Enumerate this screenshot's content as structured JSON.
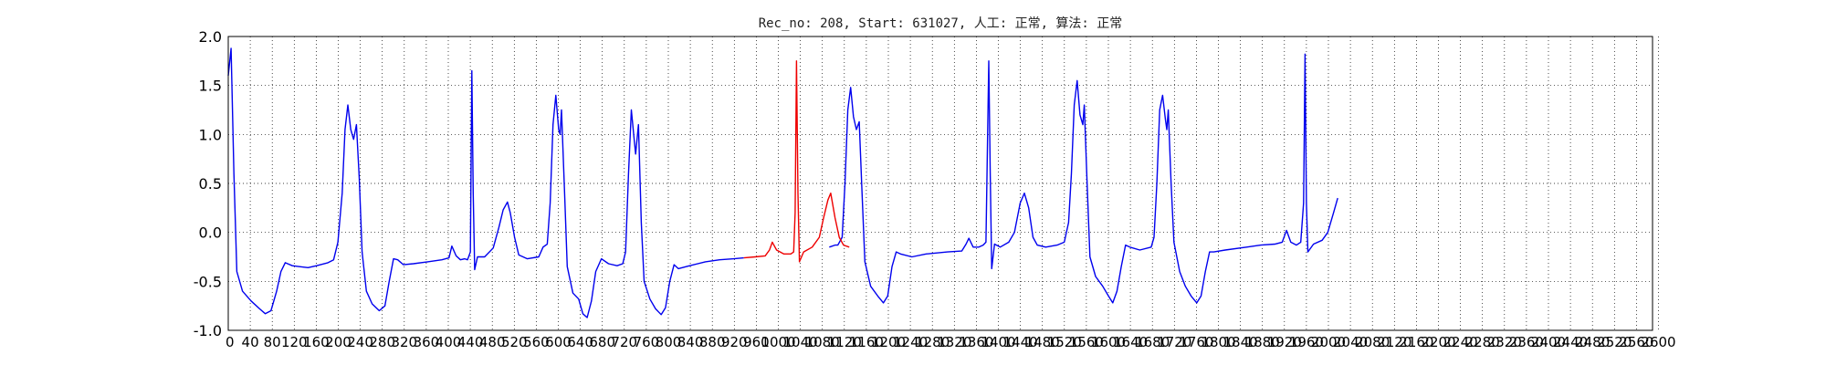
{
  "chart_data": {
    "type": "line",
    "title": "Rec_no: 208, Start: 631027, 人工: 正常, 算法: 正常",
    "xlabel": "",
    "ylabel": "",
    "xlim": [
      0,
      1000
    ],
    "ylim": [
      -1.0,
      2.0
    ],
    "yticks": [
      "-1.0",
      "-0.5",
      "0.0",
      "0.5",
      "1.0",
      "1.5",
      "2.0"
    ],
    "xticks": [
      "0",
      "40",
      "80",
      "120",
      "160",
      "200",
      "240",
      "280",
      "320",
      "360",
      "400",
      "440",
      "480",
      "520",
      "560",
      "600",
      "640",
      "680",
      "720",
      "760",
      "800",
      "840",
      "880",
      "920",
      "960",
      "1000",
      "1040",
      "1080",
      "1120",
      "1160",
      "1200",
      "1240",
      "1280",
      "1320",
      "1360",
      "1400",
      "1440",
      "1480",
      "1520",
      "1560",
      "1600",
      "1640",
      "1680",
      "1720",
      "1760",
      "1800",
      "1840",
      "1880",
      "1920",
      "1960",
      "2000",
      "2040",
      "2080",
      "2120",
      "2160",
      "2200",
      "2240",
      "2280",
      "2320",
      "2360",
      "2400",
      "2440",
      "2480",
      "2520",
      "2560",
      "2600"
    ],
    "grid": true,
    "series": [
      {
        "color": "#0000ee",
        "segments": [
          [
            [
              0,
              1.6
            ],
            [
              2,
              1.88
            ],
            [
              4,
              0.6
            ],
            [
              6,
              -0.4
            ],
            [
              10,
              -0.6
            ],
            [
              16,
              -0.7
            ],
            [
              22,
              -0.78
            ],
            [
              26,
              -0.83
            ],
            [
              30,
              -0.8
            ],
            [
              34,
              -0.6
            ],
            [
              37,
              -0.4
            ],
            [
              40,
              -0.31
            ],
            [
              45,
              -0.34
            ],
            [
              50,
              -0.35
            ],
            [
              56,
              -0.36
            ],
            [
              62,
              -0.34
            ],
            [
              70,
              -0.31
            ],
            [
              74,
              -0.28
            ],
            [
              77,
              -0.1
            ],
            [
              80,
              0.4
            ],
            [
              82,
              1.05
            ],
            [
              84,
              1.3
            ],
            [
              86,
              1.05
            ],
            [
              88,
              0.95
            ],
            [
              90,
              1.1
            ],
            [
              92,
              0.55
            ],
            [
              94,
              -0.2
            ],
            [
              97,
              -0.6
            ],
            [
              101,
              -0.73
            ],
            [
              106,
              -0.8
            ],
            [
              110,
              -0.75
            ],
            [
              113,
              -0.5
            ],
            [
              116,
              -0.27
            ],
            [
              119,
              -0.28
            ],
            [
              123,
              -0.33
            ],
            [
              130,
              -0.32
            ],
            [
              140,
              -0.3
            ],
            [
              150,
              -0.28
            ],
            [
              155,
              -0.26
            ],
            [
              157,
              -0.14
            ],
            [
              160,
              -0.24
            ],
            [
              163,
              -0.28
            ],
            [
              166,
              -0.27
            ],
            [
              168,
              -0.28
            ],
            [
              170,
              -0.2
            ],
            [
              171,
              1.65
            ],
            [
              172,
              0.4
            ],
            [
              173,
              -0.38
            ],
            [
              175,
              -0.25
            ],
            [
              180,
              -0.25
            ],
            [
              186,
              -0.16
            ],
            [
              190,
              0.05
            ],
            [
              193,
              0.23
            ],
            [
              196,
              0.31
            ],
            [
              198,
              0.2
            ],
            [
              201,
              -0.05
            ],
            [
              204,
              -0.23
            ],
            [
              210,
              -0.27
            ],
            [
              218,
              -0.25
            ],
            [
              221,
              -0.15
            ],
            [
              224,
              -0.12
            ],
            [
              226,
              0.3
            ],
            [
              228,
              1.1
            ],
            [
              230,
              1.4
            ],
            [
              232,
              1.05
            ],
            [
              233,
              1.0
            ],
            [
              234,
              1.25
            ],
            [
              236,
              0.45
            ],
            [
              238,
              -0.35
            ],
            [
              242,
              -0.62
            ],
            [
              246,
              -0.68
            ],
            [
              249,
              -0.83
            ],
            [
              252,
              -0.87
            ],
            [
              255,
              -0.7
            ],
            [
              258,
              -0.4
            ],
            [
              262,
              -0.27
            ],
            [
              267,
              -0.32
            ],
            [
              273,
              -0.34
            ],
            [
              277,
              -0.32
            ],
            [
              279,
              -0.2
            ],
            [
              281,
              0.6
            ],
            [
              283,
              1.25
            ],
            [
              285,
              0.95
            ],
            [
              286,
              0.8
            ],
            [
              288,
              1.1
            ],
            [
              290,
              0.1
            ],
            [
              292,
              -0.5
            ],
            [
              296,
              -0.68
            ],
            [
              300,
              -0.78
            ],
            [
              304,
              -0.84
            ],
            [
              307,
              -0.77
            ],
            [
              310,
              -0.5
            ],
            [
              313,
              -0.33
            ],
            [
              316,
              -0.37
            ],
            [
              324,
              -0.34
            ],
            [
              335,
              -0.3
            ],
            [
              345,
              -0.28
            ],
            [
              355,
              -0.27
            ],
            [
              362,
              -0.26
            ]
          ],
          [
            [
              422,
              -0.15
            ],
            [
              426,
              -0.13
            ],
            [
              428,
              -0.13
            ],
            [
              431,
              -0.05
            ],
            [
              433,
              0.5
            ],
            [
              435,
              1.25
            ],
            [
              437,
              1.48
            ],
            [
              439,
              1.18
            ],
            [
              441,
              1.05
            ],
            [
              443,
              1.13
            ],
            [
              445,
              0.4
            ],
            [
              447,
              -0.3
            ],
            [
              451,
              -0.55
            ],
            [
              456,
              -0.65
            ],
            [
              460,
              -0.72
            ],
            [
              463,
              -0.65
            ],
            [
              466,
              -0.35
            ],
            [
              469,
              -0.2
            ],
            [
              472,
              -0.22
            ],
            [
              480,
              -0.25
            ],
            [
              490,
              -0.22
            ],
            [
              505,
              -0.2
            ],
            [
              515,
              -0.19
            ],
            [
              518,
              -0.12
            ],
            [
              520,
              -0.06
            ],
            [
              523,
              -0.15
            ],
            [
              527,
              -0.15
            ],
            [
              530,
              -0.13
            ],
            [
              532,
              -0.1
            ],
            [
              534,
              1.75
            ],
            [
              535,
              0.6
            ],
            [
              536,
              -0.37
            ],
            [
              538,
              -0.12
            ],
            [
              542,
              -0.15
            ],
            [
              548,
              -0.1
            ],
            [
              552,
              0.0
            ],
            [
              556,
              0.3
            ],
            [
              559,
              0.4
            ],
            [
              562,
              0.25
            ],
            [
              565,
              -0.05
            ],
            [
              568,
              -0.13
            ],
            [
              574,
              -0.15
            ],
            [
              582,
              -0.13
            ],
            [
              587,
              -0.1
            ],
            [
              590,
              0.1
            ],
            [
              592,
              0.6
            ],
            [
              594,
              1.3
            ],
            [
              596,
              1.55
            ],
            [
              598,
              1.2
            ],
            [
              600,
              1.1
            ],
            [
              601,
              1.3
            ],
            [
              603,
              0.5
            ],
            [
              605,
              -0.25
            ],
            [
              609,
              -0.45
            ],
            [
              614,
              -0.55
            ],
            [
              618,
              -0.65
            ],
            [
              621,
              -0.72
            ],
            [
              624,
              -0.6
            ],
            [
              627,
              -0.35
            ],
            [
              630,
              -0.13
            ],
            [
              633,
              -0.15
            ],
            [
              640,
              -0.18
            ],
            [
              648,
              -0.15
            ],
            [
              650,
              -0.05
            ],
            [
              652,
              0.5
            ],
            [
              654,
              1.25
            ],
            [
              656,
              1.4
            ],
            [
              658,
              1.15
            ],
            [
              659,
              1.05
            ],
            [
              660,
              1.25
            ],
            [
              662,
              0.5
            ],
            [
              664,
              -0.1
            ],
            [
              668,
              -0.4
            ],
            [
              672,
              -0.55
            ],
            [
              676,
              -0.65
            ],
            [
              680,
              -0.72
            ],
            [
              683,
              -0.65
            ],
            [
              686,
              -0.4
            ],
            [
              689,
              -0.2
            ],
            [
              692,
              -0.2
            ],
            [
              700,
              -0.18
            ],
            [
              715,
              -0.15
            ],
            [
              725,
              -0.13
            ],
            [
              735,
              -0.12
            ],
            [
              740,
              -0.1
            ],
            [
              743,
              0.02
            ],
            [
              746,
              -0.1
            ],
            [
              750,
              -0.13
            ],
            [
              753,
              -0.1
            ],
            [
              755,
              0.3
            ],
            [
              756,
              1.82
            ],
            [
              757,
              0.3
            ],
            [
              758,
              -0.2
            ],
            [
              762,
              -0.12
            ],
            [
              768,
              -0.08
            ],
            [
              772,
              0.0
            ],
            [
              776,
              0.2
            ],
            [
              779,
              0.35
            ]
          ]
        ]
      },
      {
        "color": "#ee0000",
        "segments": [
          [
            [
              362,
              -0.26
            ],
            [
              370,
              -0.25
            ],
            [
              377,
              -0.24
            ],
            [
              380,
              -0.18
            ],
            [
              382,
              -0.1
            ],
            [
              385,
              -0.18
            ],
            [
              390,
              -0.22
            ],
            [
              395,
              -0.22
            ],
            [
              397,
              -0.2
            ],
            [
              398,
              0.2
            ],
            [
              399,
              1.75
            ],
            [
              400,
              0.4
            ],
            [
              401,
              -0.3
            ],
            [
              404,
              -0.2
            ],
            [
              410,
              -0.15
            ],
            [
              415,
              -0.05
            ],
            [
              418,
              0.15
            ],
            [
              421,
              0.33
            ],
            [
              423,
              0.4
            ],
            [
              426,
              0.15
            ],
            [
              429,
              -0.05
            ],
            [
              432,
              -0.13
            ],
            [
              436,
              -0.15
            ]
          ]
        ]
      }
    ]
  }
}
